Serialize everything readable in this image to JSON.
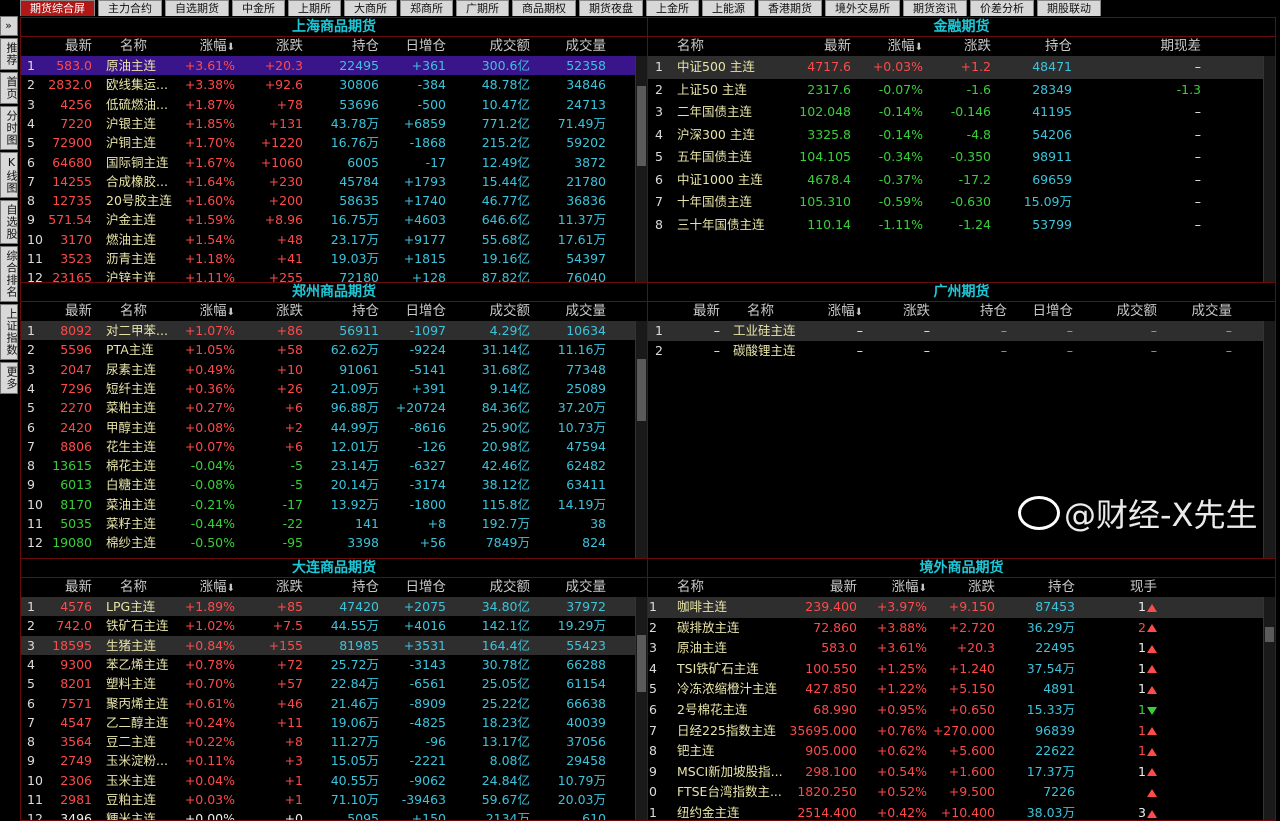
{
  "tabs": [
    "期货综合屏",
    "主力合约",
    "自选期货",
    "中金所",
    "上期所",
    "大商所",
    "郑商所",
    "广期所",
    "商品期权",
    "期货夜盘",
    "上金所",
    "上能源",
    "香港期货",
    "境外交易所",
    "期货资讯",
    "价差分析",
    "期股联动"
  ],
  "active_tab": "期货综合屏",
  "sidebar": [
    "»",
    "推荐",
    "首页",
    "分时图",
    "K线图",
    "自选股",
    "综合排名",
    "上证指数",
    "更多"
  ],
  "sort_indicator": "down-arrow-icon",
  "colors": {
    "up": "#ff4a4a",
    "down": "#38d038",
    "cyan": "#3cc4dc",
    "name": "#e8e4a8",
    "title": "#1ec8d8",
    "border": "#6a0c0c",
    "selected": "#3a148a"
  },
  "panels": {
    "shfe": {
      "title": "上海商品期货",
      "headers": [
        "",
        "最新",
        "名称",
        "涨幅",
        "涨跌",
        "持仓",
        "日增仓",
        "成交额",
        "成交量"
      ],
      "selected_row": 1,
      "highlighted_rows": [],
      "rows": [
        [
          "1",
          "583.0",
          "原油主连",
          "+3.61%",
          "+20.3",
          "22495",
          "+361",
          "300.6亿",
          "52358"
        ],
        [
          "2",
          "2832.0",
          "欧线集运...",
          "+3.38%",
          "+92.6",
          "30806",
          "-384",
          "48.78亿",
          "34846"
        ],
        [
          "3",
          "4256",
          "低硫燃油...",
          "+1.87%",
          "+78",
          "53696",
          "-500",
          "10.47亿",
          "24713"
        ],
        [
          "4",
          "7220",
          "沪银主连",
          "+1.85%",
          "+131",
          "43.78万",
          "+6859",
          "771.2亿",
          "71.49万"
        ],
        [
          "5",
          "72900",
          "沪铜主连",
          "+1.70%",
          "+1220",
          "16.76万",
          "-1868",
          "215.2亿",
          "59202"
        ],
        [
          "6",
          "64680",
          "国际铜主连",
          "+1.67%",
          "+1060",
          "6005",
          "-17",
          "12.49亿",
          "3872"
        ],
        [
          "7",
          "14255",
          "合成橡胶...",
          "+1.64%",
          "+230",
          "45784",
          "+1793",
          "15.44亿",
          "21780"
        ],
        [
          "8",
          "12735",
          "20号胶主连",
          "+1.60%",
          "+200",
          "58635",
          "+1740",
          "46.77亿",
          "36836"
        ],
        [
          "9",
          "571.54",
          "沪金主连",
          "+1.59%",
          "+8.96",
          "16.75万",
          "+4603",
          "646.6亿",
          "11.37万"
        ],
        [
          "10",
          "3170",
          "燃油主连",
          "+1.54%",
          "+48",
          "23.17万",
          "+9177",
          "55.68亿",
          "17.61万"
        ],
        [
          "11",
          "3523",
          "沥青主连",
          "+1.18%",
          "+41",
          "19.03万",
          "+1815",
          "19.16亿",
          "54397"
        ],
        [
          "12",
          "23165",
          "沪锌主连",
          "+1.11%",
          "+255",
          "72180",
          "+128",
          "87.82亿",
          "76040"
        ]
      ]
    },
    "czce": {
      "title": "郑州商品期货",
      "headers": [
        "",
        "最新",
        "名称",
        "涨幅",
        "涨跌",
        "持仓",
        "日增仓",
        "成交额",
        "成交量"
      ],
      "highlighted_rows": [
        1
      ],
      "rows": [
        [
          "1",
          "8092",
          "对二甲苯...",
          "+1.07%",
          "+86",
          "56911",
          "-1097",
          "4.29亿",
          "10634"
        ],
        [
          "2",
          "5596",
          "PTA主连",
          "+1.05%",
          "+58",
          "62.62万",
          "-9224",
          "31.14亿",
          "11.16万"
        ],
        [
          "3",
          "2047",
          "尿素主连",
          "+0.49%",
          "+10",
          "91061",
          "-5141",
          "31.68亿",
          "77348"
        ],
        [
          "4",
          "7296",
          "短纤主连",
          "+0.36%",
          "+26",
          "21.09万",
          "+391",
          "9.14亿",
          "25089"
        ],
        [
          "5",
          "2270",
          "菜粕主连",
          "+0.27%",
          "+6",
          "96.88万",
          "+20724",
          "84.36亿",
          "37.20万"
        ],
        [
          "6",
          "2420",
          "甲醇主连",
          "+0.08%",
          "+2",
          "44.99万",
          "-8616",
          "25.90亿",
          "10.73万"
        ],
        [
          "7",
          "8806",
          "花生主连",
          "+0.07%",
          "+6",
          "12.01万",
          "-126",
          "20.98亿",
          "47594"
        ],
        [
          "8",
          "13615",
          "棉花主连",
          "-0.04%",
          "-5",
          "23.14万",
          "-6327",
          "42.46亿",
          "62482"
        ],
        [
          "9",
          "6013",
          "白糖主连",
          "-0.08%",
          "-5",
          "20.14万",
          "-3174",
          "38.12亿",
          "63411"
        ],
        [
          "10",
          "8170",
          "菜油主连",
          "-0.21%",
          "-17",
          "13.92万",
          "-1800",
          "115.8亿",
          "14.19万"
        ],
        [
          "11",
          "5035",
          "菜籽主连",
          "-0.44%",
          "-22",
          "141",
          "+8",
          "192.7万",
          "38"
        ],
        [
          "12",
          "19080",
          "棉纱主连",
          "-0.50%",
          "-95",
          "3398",
          "+56",
          "7849万",
          "824"
        ]
      ]
    },
    "dce": {
      "title": "大连商品期货",
      "headers": [
        "",
        "最新",
        "名称",
        "涨幅",
        "涨跌",
        "持仓",
        "日增仓",
        "成交额",
        "成交量"
      ],
      "highlighted_rows": [
        1,
        3
      ],
      "rows": [
        [
          "1",
          "4576",
          "LPG主连",
          "+1.89%",
          "+85",
          "47420",
          "+2075",
          "34.80亿",
          "37972"
        ],
        [
          "2",
          "742.0",
          "铁矿石主连",
          "+1.02%",
          "+7.5",
          "44.55万",
          "+4016",
          "142.1亿",
          "19.29万"
        ],
        [
          "3",
          "18595",
          "生猪主连",
          "+0.84%",
          "+155",
          "81985",
          "+3531",
          "164.4亿",
          "55423"
        ],
        [
          "4",
          "9300",
          "苯乙烯主连",
          "+0.78%",
          "+72",
          "25.72万",
          "-3143",
          "30.78亿",
          "66288"
        ],
        [
          "5",
          "8201",
          "塑料主连",
          "+0.70%",
          "+57",
          "22.84万",
          "-6561",
          "25.05亿",
          "61154"
        ],
        [
          "6",
          "7571",
          "聚丙烯主连",
          "+0.61%",
          "+46",
          "21.46万",
          "-8909",
          "25.22亿",
          "66638"
        ],
        [
          "7",
          "4547",
          "乙二醇主连",
          "+0.24%",
          "+11",
          "19.06万",
          "-4825",
          "18.23亿",
          "40039"
        ],
        [
          "8",
          "3564",
          "豆二主连",
          "+0.22%",
          "+8",
          "11.27万",
          "-96",
          "13.17亿",
          "37056"
        ],
        [
          "9",
          "2749",
          "玉米淀粉...",
          "+0.11%",
          "+3",
          "15.05万",
          "-2221",
          "8.08亿",
          "29458"
        ],
        [
          "10",
          "2306",
          "玉米主连",
          "+0.04%",
          "+1",
          "40.55万",
          "-9062",
          "24.84亿",
          "10.79万"
        ],
        [
          "11",
          "2981",
          "豆粕主连",
          "+0.03%",
          "+1",
          "71.10万",
          "-39463",
          "59.67亿",
          "20.03万"
        ],
        [
          "12",
          "3496",
          "粳米主连",
          "+0.00%",
          "+0",
          "5095",
          "+150",
          "2134万",
          "610"
        ]
      ]
    },
    "cffex": {
      "title": "金融期货",
      "headers": [
        "",
        "名称",
        "最新",
        "涨幅",
        "涨跌",
        "持仓",
        "期现差"
      ],
      "highlighted_rows": [
        1
      ],
      "rows": [
        [
          "1",
          "中证500 主连",
          "4717.6",
          "+0.03%",
          "+1.2",
          "48471",
          "–"
        ],
        [
          "2",
          "上证50 主连",
          "2317.6",
          "-0.07%",
          "-1.6",
          "28349",
          "-1.3"
        ],
        [
          "3",
          "二年国债主连",
          "102.048",
          "-0.14%",
          "-0.146",
          "41195",
          "–"
        ],
        [
          "4",
          "沪深300 主连",
          "3325.8",
          "-0.14%",
          "-4.8",
          "54206",
          "–"
        ],
        [
          "5",
          "五年国债主连",
          "104.105",
          "-0.34%",
          "-0.350",
          "98911",
          "–"
        ],
        [
          "6",
          "中证1000 主连",
          "4678.4",
          "-0.37%",
          "-17.2",
          "69659",
          "–"
        ],
        [
          "7",
          "十年国债主连",
          "105.310",
          "-0.59%",
          "-0.630",
          "15.09万",
          "–"
        ],
        [
          "8",
          "三十年国债主连",
          "110.14",
          "-1.11%",
          "-1.24",
          "53799",
          "–"
        ]
      ]
    },
    "gfex": {
      "title": "广州期货",
      "headers": [
        "",
        "最新",
        "名称",
        "涨幅",
        "涨跌",
        "持仓",
        "日增仓",
        "成交额",
        "成交量"
      ],
      "highlighted_rows": [
        1
      ],
      "rows": [
        [
          "1",
          "–",
          "工业硅主连",
          "–",
          "–",
          "–",
          "–",
          "–",
          "–"
        ],
        [
          "2",
          "–",
          "碳酸锂主连",
          "–",
          "–",
          "–",
          "–",
          "–",
          "–"
        ]
      ]
    },
    "overseas": {
      "title": "境外商品期货",
      "headers": [
        "",
        "名称",
        "最新",
        "涨幅",
        "涨跌",
        "持仓",
        "现手"
      ],
      "highlighted_rows": [
        1
      ],
      "rows": [
        [
          "1",
          "咖啡主连",
          "239.400",
          "+3.97%",
          "+9.150",
          "87453",
          {
            "v": "1",
            "dir": "up",
            "color": "white"
          }
        ],
        [
          "2",
          "碳排放主连",
          "72.860",
          "+3.88%",
          "+2.720",
          "36.29万",
          {
            "v": "2",
            "dir": "up",
            "color": "red"
          }
        ],
        [
          "3",
          "原油主连",
          "583.0",
          "+3.61%",
          "+20.3",
          "22495",
          {
            "v": "1",
            "dir": "up",
            "color": "white"
          }
        ],
        [
          "4",
          "TSI铁矿石主连",
          "100.550",
          "+1.25%",
          "+1.240",
          "37.54万",
          {
            "v": "1",
            "dir": "up",
            "color": "white"
          }
        ],
        [
          "5",
          "冷冻浓缩橙汁主连",
          "427.850",
          "+1.22%",
          "+5.150",
          "4891",
          {
            "v": "1",
            "dir": "up",
            "color": "white"
          }
        ],
        [
          "6",
          "2号棉花主连",
          "68.990",
          "+0.95%",
          "+0.650",
          "15.33万",
          {
            "v": "1",
            "dir": "down",
            "color": "green"
          }
        ],
        [
          "7",
          "日经225指数主连",
          "35695.000",
          "+0.76%",
          "+270.000",
          "96839",
          {
            "v": "1",
            "dir": "up",
            "color": "red"
          }
        ],
        [
          "8",
          "钯主连",
          "905.000",
          "+0.62%",
          "+5.600",
          "22622",
          {
            "v": "1",
            "dir": "up",
            "color": "red"
          }
        ],
        [
          "9",
          "MSCI新加坡股指...",
          "298.100",
          "+0.54%",
          "+1.600",
          "17.37万",
          {
            "v": "1",
            "dir": "up",
            "color": "white"
          }
        ],
        [
          "10",
          "FTSE台湾指数主...",
          "1820.250",
          "+0.52%",
          "+9.500",
          "7226",
          {
            "v": "",
            "dir": "up",
            "color": "white"
          }
        ],
        [
          "11",
          "纽约金主连",
          "2514.400",
          "+0.42%",
          "+10.400",
          "38.03万",
          {
            "v": "3",
            "dir": "up",
            "color": "white"
          }
        ]
      ]
    }
  },
  "watermark": "@财经-X先生"
}
